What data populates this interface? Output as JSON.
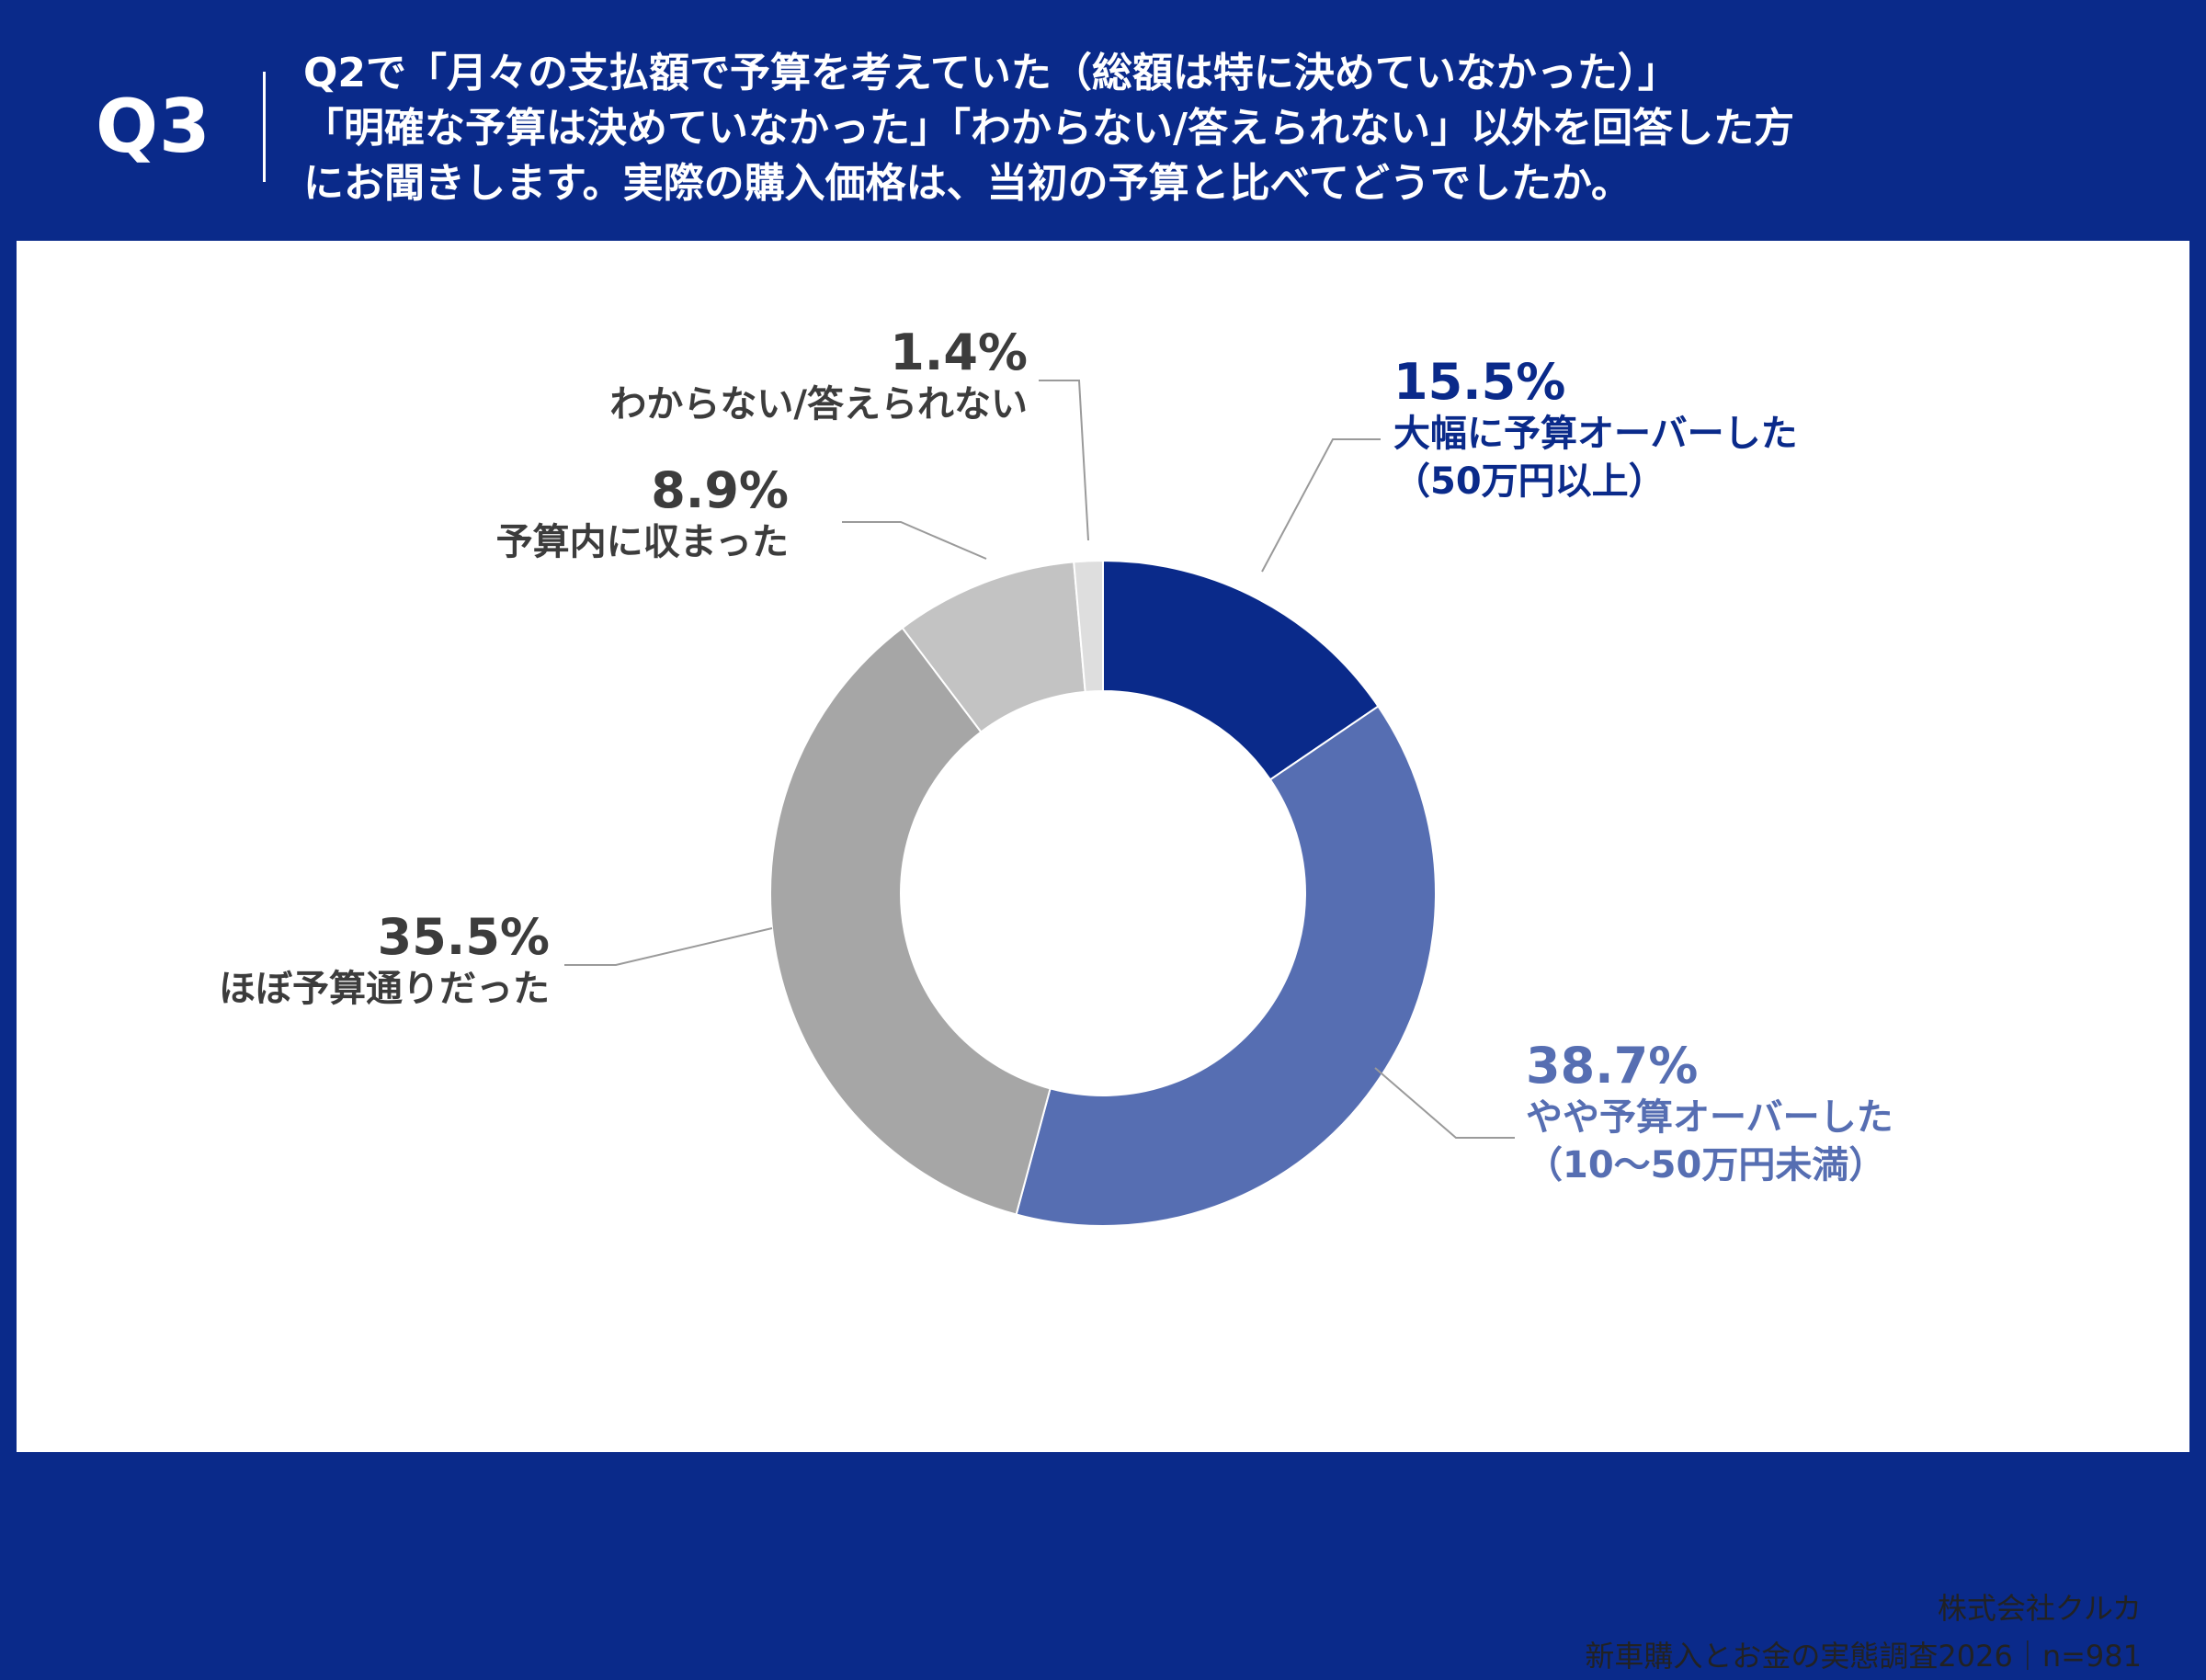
{
  "header": {
    "q_label": "Q3",
    "question_lines": [
      "Q2で「月々の支払額で予算を考えていた（総額は特に決めていなかった）」",
      "「明確な予算は決めていなかった」「わからない/答えられない」以外を回答した方",
      "にお聞きします。実際の購入価格は、当初の予算と比べてどうでしたか。"
    ]
  },
  "chart_data": {
    "type": "pie",
    "style": "donut",
    "start": "top, clockwise",
    "slices": [
      {
        "label": "大幅に予算オーバーした",
        "sublabel": "（50万円以上）",
        "value": 15.5,
        "value_text": "15.5%",
        "color": "#0a2a8a",
        "label_color": "#0a2a8a"
      },
      {
        "label": "やや予算オーバーした",
        "sublabel": "（10〜50万円未満）",
        "value": 38.7,
        "value_text": "38.7%",
        "color": "#566eb2",
        "label_color": "#566eb2"
      },
      {
        "label": "ほぼ予算通りだった",
        "sublabel": "",
        "value": 35.5,
        "value_text": "35.5%",
        "color": "#a6a6a6",
        "label_color": "#3c3c3c"
      },
      {
        "label": "予算内に収まった",
        "sublabel": "",
        "value": 8.9,
        "value_text": "8.9%",
        "color": "#c3c3c3",
        "label_color": "#3c3c3c"
      },
      {
        "label": "わからない/答えられない",
        "sublabel": "",
        "value": 1.4,
        "value_text": "1.4%",
        "color": "#dedede",
        "label_color": "#3c3c3c"
      }
    ]
  },
  "footer": {
    "company": "株式会社クルカ",
    "survey": "新車購入とお金の実態調査2026｜n=981"
  }
}
